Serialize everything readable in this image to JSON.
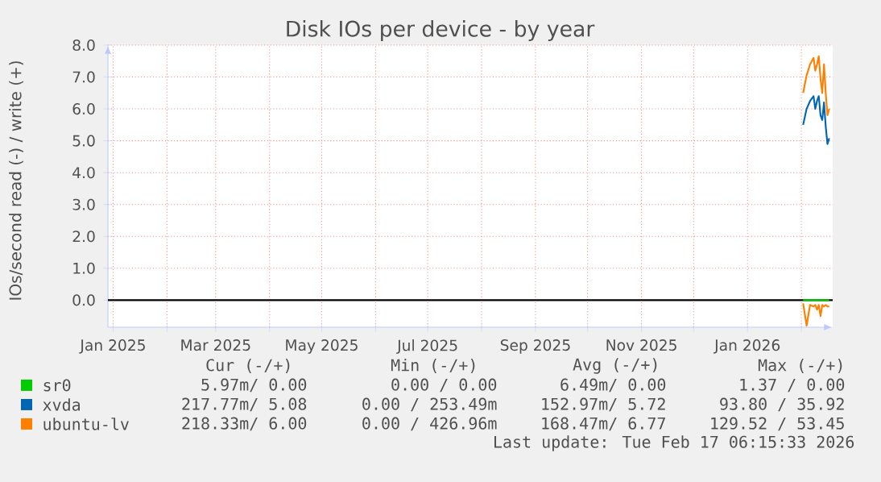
{
  "chart_data": {
    "type": "line",
    "title": "Disk IOs per device - by year",
    "ylabel": "IOs/second read (-) / write (+)",
    "x": [
      "2026-02-02",
      "2026-02-04",
      "2026-02-06",
      "2026-02-08",
      "2026-02-09",
      "2026-02-10",
      "2026-02-11",
      "2026-02-12",
      "2026-02-13",
      "2026-02-14",
      "2026-02-15",
      "2026-02-16",
      "2026-02-17"
    ],
    "series": [
      {
        "name": "sr0",
        "color": "#00cc00",
        "values": [
          0,
          0,
          0,
          0,
          0,
          0,
          0,
          0,
          0,
          0,
          0,
          0,
          0
        ]
      },
      {
        "name": "xvda",
        "color": "#0066b3",
        "values": [
          5.5,
          6.0,
          6.25,
          6.4,
          6.0,
          6.25,
          6.4,
          5.8,
          5.65,
          6.2,
          5.45,
          4.9,
          5.08
        ]
      },
      {
        "name": "ubuntu-lv",
        "color": "#ff8000",
        "values": [
          6.5,
          7.05,
          7.4,
          7.6,
          7.2,
          7.4,
          7.65,
          6.95,
          6.5,
          7.4,
          6.5,
          5.8,
          6.0
        ]
      },
      {
        "color": "#ff8000",
        "values": [
          -0.1,
          -0.8,
          -0.15,
          -0.2,
          -0.15,
          -0.3,
          -0.15,
          -0.5,
          -0.15,
          -0.2,
          -0.15,
          -0.2,
          -0.2
        ]
      }
    ],
    "xlim": [
      "2024-12-29",
      "2026-02-19"
    ],
    "xticks": [
      {
        "value": "2025-01-01",
        "label": "Jan 2025"
      },
      {
        "value": "2025-02-01",
        "label": null
      },
      {
        "value": "2025-03-01",
        "label": "Mar 2025"
      },
      {
        "value": "2025-04-01",
        "label": null
      },
      {
        "value": "2025-05-01",
        "label": "May 2025"
      },
      {
        "value": "2025-06-01",
        "label": null
      },
      {
        "value": "2025-07-01",
        "label": "Jul 2025"
      },
      {
        "value": "2025-08-01",
        "label": null
      },
      {
        "value": "2025-09-01",
        "label": "Sep 2025"
      },
      {
        "value": "2025-10-01",
        "label": null
      },
      {
        "value": "2025-11-01",
        "label": "Nov 2025"
      },
      {
        "value": "2025-12-01",
        "label": null
      },
      {
        "value": "2026-01-01",
        "label": "Jan 2026"
      },
      {
        "value": "2026-02-01",
        "label": null
      }
    ],
    "ylim": [
      -0.85,
      8.0
    ],
    "yticks": [
      {
        "value": 0,
        "label": "0.0"
      },
      {
        "value": 1,
        "label": "1.0"
      },
      {
        "value": 2,
        "label": "2.0"
      },
      {
        "value": 3,
        "label": "3.0"
      },
      {
        "value": 4,
        "label": "4.0"
      },
      {
        "value": 5,
        "label": "5.0"
      },
      {
        "value": 6,
        "label": "6.0"
      },
      {
        "value": 7,
        "label": "7.0"
      },
      {
        "value": 8,
        "label": "8.0"
      }
    ],
    "grid": true,
    "legend": "bottom",
    "ref_lines": [
      {
        "axis": "y",
        "value": 0,
        "color": "#000000"
      }
    ],
    "annotations": [
      "Cur (-/+)",
      "Min (-/+)",
      "Avg (-/+)",
      "Max (-/+)",
      "5.97m/ 0.00",
      "0.00 / 0.00",
      "6.49m/ 0.00",
      "1.37 / 0.00",
      "217.77m/ 5.08",
      "0.00 / 253.49m",
      "152.97m/ 5.72",
      "93.80 / 35.92",
      "218.33m/ 6.00",
      "0.00 / 426.96m",
      "168.47m/ 6.77",
      "129.52 / 53.45",
      "Last update: Tue Feb 17 06:15:33 2026"
    ]
  }
}
